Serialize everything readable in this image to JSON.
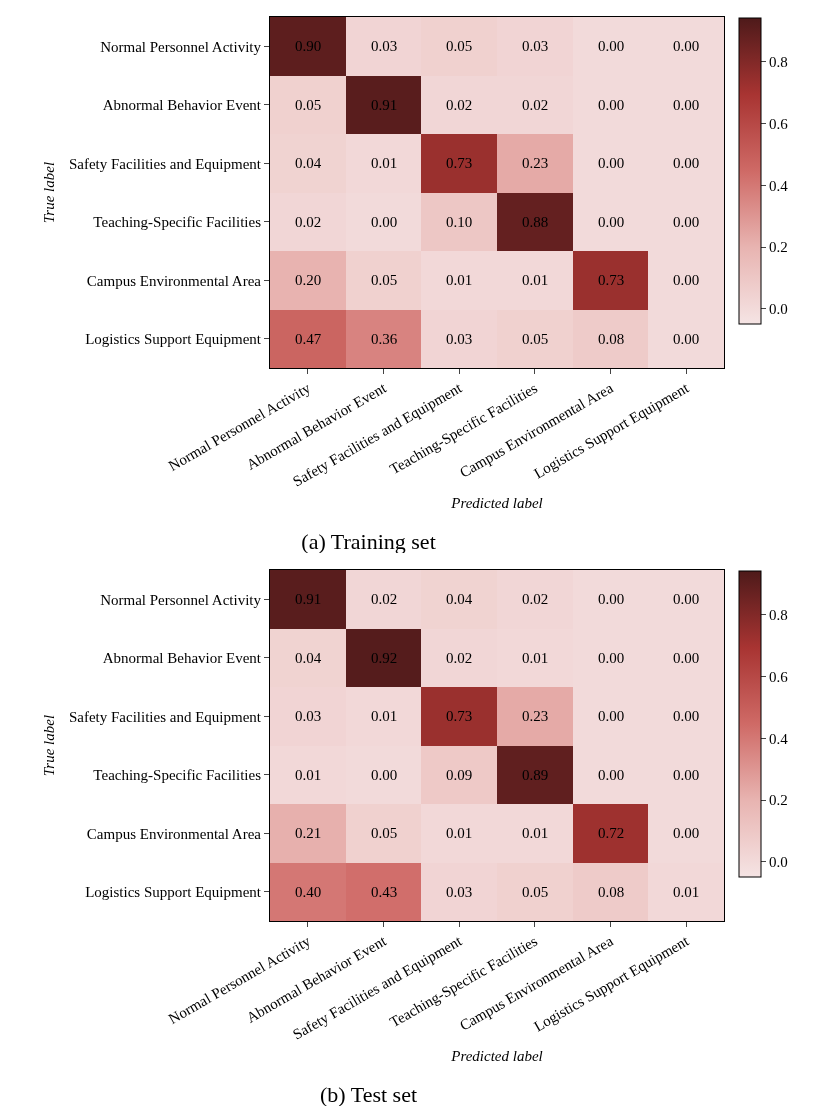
{
  "chart_data": [
    {
      "type": "heatmap",
      "title": "(a) Training set",
      "xlabel": "Predicted label",
      "ylabel": "True label",
      "categories": [
        "Normal Personnel Activity",
        "Abnormal Behavior Event",
        "Safety Facilities and Equipment",
        "Teaching-Specific Facilities",
        "Campus Environmental Area",
        "Logistics Support Equipment"
      ],
      "y_categories": [
        "Normal Personnel Activity",
        "Abnormal Behavior Event",
        "Safety Facilities and Equipment",
        "Teaching-Specific Facilities",
        "Campus Environmental Area",
        "Logistics Support Equipment"
      ],
      "cells": [
        [
          0.9,
          0.03,
          0.05,
          0.03,
          0.0,
          0.0
        ],
        [
          0.05,
          0.91,
          0.02,
          0.02,
          0.0,
          0.0
        ],
        [
          0.04,
          0.01,
          0.73,
          0.23,
          0.0,
          0.0
        ],
        [
          0.02,
          0.0,
          0.1,
          0.88,
          0.0,
          0.0
        ],
        [
          0.2,
          0.05,
          0.01,
          0.01,
          0.73,
          0.0
        ],
        [
          0.47,
          0.36,
          0.03,
          0.05,
          0.08,
          0.0
        ]
      ],
      "cell_labels": [
        [
          "0.90",
          "0.03",
          "0.05",
          "0.03",
          "0.00",
          "0.00"
        ],
        [
          "0.05",
          "0.91",
          "0.02",
          "0.02",
          "0.00",
          "0.00"
        ],
        [
          "0.04",
          "0.01",
          "0.73",
          "0.23",
          "0.00",
          "0.00"
        ],
        [
          "0.02",
          "0.00",
          "0.10",
          "0.88",
          "0.00",
          "0.00"
        ],
        [
          "0.20",
          "0.05",
          "0.01",
          "0.01",
          "0.73",
          "0.00"
        ],
        [
          "0.47",
          "0.36",
          "0.03",
          "0.05",
          "0.08",
          "0.00"
        ]
      ],
      "clim": [
        -0.05,
        0.94
      ],
      "cticks": [
        {
          "value": 0,
          "label": "0.0"
        },
        {
          "value": 0.2,
          "label": "0.2"
        },
        {
          "value": 0.4,
          "label": "0.4"
        },
        {
          "value": 0.6,
          "label": "0.6"
        },
        {
          "value": 0.8,
          "label": "0.8"
        }
      ]
    },
    {
      "type": "heatmap",
      "title": "(b) Test set",
      "xlabel": "Predicted label",
      "ylabel": "True label",
      "categories": [
        "Normal Personnel Activity",
        "Abnormal Behavior Event",
        "Safety Facilities and Equipment",
        "Teaching-Specific Facilities",
        "Campus Environmental Area",
        "Logistics Support Equipment"
      ],
      "y_categories": [
        "Normal Personnel Activity",
        "Abnormal Behavior Event",
        "Safety Facilities and Equipment",
        "Teaching-Specific Facilities",
        "Campus Environmental Area",
        "Logistics Support Equipment"
      ],
      "cells": [
        [
          0.91,
          0.02,
          0.04,
          0.02,
          0.0,
          0.0
        ],
        [
          0.04,
          0.92,
          0.02,
          0.01,
          0.0,
          0.0
        ],
        [
          0.03,
          0.01,
          0.73,
          0.23,
          0.0,
          0.0
        ],
        [
          0.01,
          0.0,
          0.09,
          0.89,
          0.0,
          0.0
        ],
        [
          0.21,
          0.05,
          0.01,
          0.01,
          0.72,
          0.0
        ],
        [
          0.4,
          0.43,
          0.03,
          0.05,
          0.08,
          0.01
        ]
      ],
      "cell_labels": [
        [
          "0.91",
          "0.02",
          "0.04",
          "0.02",
          "0.00",
          "0.00"
        ],
        [
          "0.04",
          "0.92",
          "0.02",
          "0.01",
          "0.00",
          "0.00"
        ],
        [
          "0.03",
          "0.01",
          "0.73",
          "0.23",
          "0.00",
          "0.00"
        ],
        [
          "0.01",
          "0.00",
          "0.09",
          "0.89",
          "0.00",
          "0.00"
        ],
        [
          "0.21",
          "0.05",
          "0.01",
          "0.01",
          "0.72",
          "0.00"
        ],
        [
          "0.40",
          "0.43",
          "0.03",
          "0.05",
          "0.08",
          "0.01"
        ]
      ],
      "clim": [
        -0.05,
        0.94
      ],
      "cticks": [
        {
          "value": 0,
          "label": "0.0"
        },
        {
          "value": 0.2,
          "label": "0.2"
        },
        {
          "value": 0.4,
          "label": "0.4"
        },
        {
          "value": 0.6,
          "label": "0.6"
        },
        {
          "value": 0.8,
          "label": "0.8"
        }
      ]
    }
  ]
}
